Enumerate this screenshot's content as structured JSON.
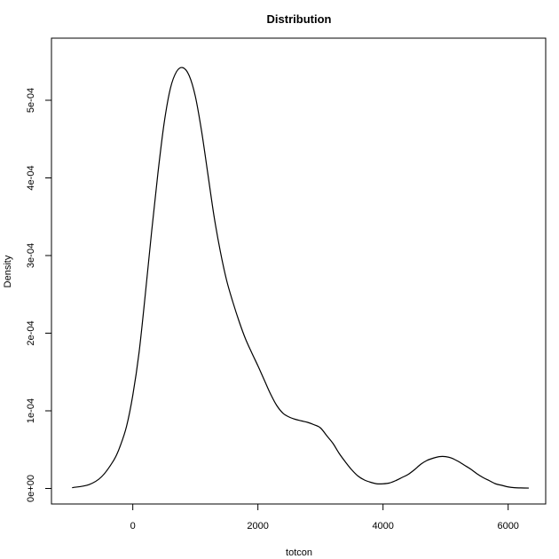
{
  "chart_data": {
    "type": "line",
    "title": "Distribution",
    "xlabel": "totcon",
    "ylabel": "Density",
    "xlim": [
      -1300,
      6600
    ],
    "ylim": [
      -2e-05,
      0.00058
    ],
    "x_ticks": [
      0,
      2000,
      4000,
      6000
    ],
    "x_tick_labels": [
      "0",
      "2000",
      "4000",
      "6000"
    ],
    "y_ticks": [
      0,
      0.0001,
      0.0002,
      0.0003,
      0.0004,
      0.0005
    ],
    "y_tick_labels": [
      "0e+00",
      "1e-04",
      "2e-04",
      "3e-04",
      "4e-04",
      "5e-04"
    ],
    "grid": false,
    "legend": "none",
    "line_color": "#000000",
    "series": [
      {
        "x": [
          -970,
          -700,
          -500,
          -300,
          -200,
          -100,
          0,
          100,
          200,
          300,
          400,
          500,
          600,
          700,
          800,
          900,
          1000,
          1100,
          1200,
          1300,
          1400,
          1500,
          1600,
          1700,
          1800,
          1900,
          2000,
          2100,
          2200,
          2300,
          2400,
          2500,
          2600,
          2700,
          2800,
          2900,
          3000,
          3100,
          3200,
          3300,
          3400,
          3500,
          3600,
          3700,
          3800,
          3900,
          4000,
          4100,
          4200,
          4300,
          4400,
          4500,
          4600,
          4700,
          4800,
          4900,
          5000,
          5100,
          5200,
          5300,
          5400,
          5500,
          5600,
          5700,
          5800,
          5900,
          6000,
          6100,
          6200,
          6330
        ],
        "y": [
          1e-06,
          5e-06,
          1.5e-05,
          3.7e-05,
          5.5e-05,
          8e-05,
          0.00012,
          0.000175,
          0.00025,
          0.00033,
          0.000405,
          0.00047,
          0.000515,
          0.000537,
          0.000542,
          0.000532,
          0.000505,
          0.00046,
          0.000405,
          0.00035,
          0.000305,
          0.000268,
          0.00024,
          0.000215,
          0.000193,
          0.000175,
          0.000158,
          0.00014,
          0.000122,
          0.000107,
          9.7e-05,
          9.2e-05,
          8.9e-05,
          8.7e-05,
          8.5e-05,
          8.2e-05,
          7.8e-05,
          6.8e-05,
          5.8e-05,
          4.5e-05,
          3.4e-05,
          2.4e-05,
          1.6e-05,
          1.1e-05,
          8e-06,
          6e-06,
          6e-06,
          7e-06,
          1e-05,
          1.4e-05,
          1.8e-05,
          2.4e-05,
          3.1e-05,
          3.6e-05,
          3.9e-05,
          4.1e-05,
          4.1e-05,
          3.9e-05,
          3.5e-05,
          3e-05,
          2.5e-05,
          1.9e-05,
          1.4e-05,
          1e-05,
          6e-06,
          4e-06,
          2e-06,
          1e-06,
          7e-07,
          5e-07
        ]
      }
    ]
  }
}
